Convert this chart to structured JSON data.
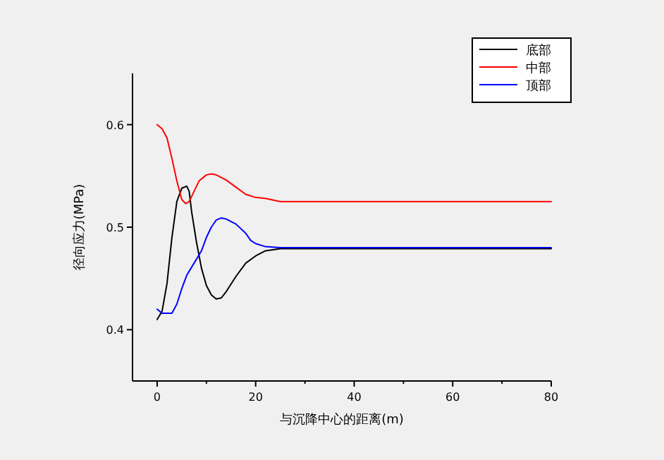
{
  "chart_data": {
    "type": "line",
    "xlabel": "与沉降中心的距离(m)",
    "ylabel": "径向应力(MPa)",
    "xlim": [
      -5,
      80
    ],
    "ylim": [
      0.35,
      0.65
    ],
    "xticks": [
      0,
      {
        "value": 10,
        "label": null
      },
      20,
      {
        "value": 30,
        "label": null
      },
      40,
      {
        "value": 50,
        "label": null
      },
      60,
      {
        "value": 70,
        "label": null
      },
      80
    ],
    "yticks": [
      0.4,
      0.5,
      0.6
    ],
    "grid": false,
    "legend": "top right",
    "marker": "none",
    "line_style": "solid",
    "series": [
      {
        "name": "底部",
        "color": "#000000",
        "x": [
          0,
          1,
          2,
          3,
          4,
          5,
          6,
          6.5,
          7,
          8,
          9,
          10,
          11,
          12,
          13,
          14,
          16,
          18,
          20,
          22,
          25,
          80
        ],
        "values": [
          0.41,
          0.418,
          0.445,
          0.49,
          0.525,
          0.538,
          0.54,
          0.535,
          0.515,
          0.485,
          0.46,
          0.443,
          0.434,
          0.43,
          0.431,
          0.437,
          0.452,
          0.465,
          0.472,
          0.477,
          0.479,
          0.479
        ]
      },
      {
        "name": "中部",
        "color": "#ff0000",
        "x": [
          0,
          1,
          2,
          3,
          4,
          5,
          5.8,
          6.5,
          7.5,
          8.5,
          10,
          11,
          12,
          14,
          16,
          18,
          20,
          22,
          24,
          25,
          80
        ],
        "values": [
          0.6,
          0.596,
          0.587,
          0.567,
          0.545,
          0.527,
          0.523,
          0.525,
          0.535,
          0.545,
          0.551,
          0.552,
          0.551,
          0.546,
          0.539,
          0.532,
          0.529,
          0.528,
          0.526,
          0.525,
          0.525
        ]
      },
      {
        "name": "顶部",
        "color": "#0000ff",
        "x": [
          0,
          1,
          3,
          4,
          5,
          6,
          7.5,
          9,
          10,
          11,
          12,
          13,
          14,
          16,
          18,
          19,
          20,
          22,
          25,
          80
        ],
        "values": [
          0.42,
          0.416,
          0.416,
          0.425,
          0.44,
          0.453,
          0.465,
          0.477,
          0.49,
          0.5,
          0.507,
          0.509,
          0.508,
          0.503,
          0.494,
          0.487,
          0.484,
          0.481,
          0.48,
          0.48
        ]
      }
    ]
  }
}
